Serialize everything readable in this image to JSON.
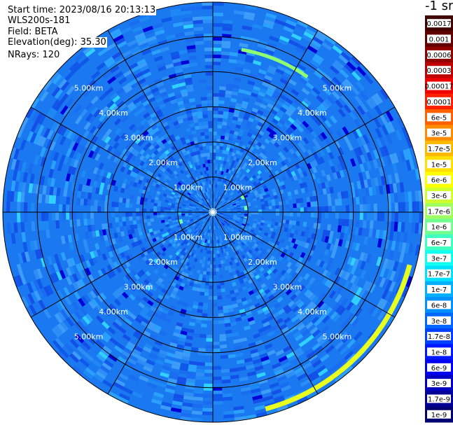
{
  "header": {
    "start_time": "Start time: 2023/08/16 20:13:13",
    "instrument": "WLS200s-181",
    "field": "Field: BETA",
    "elevation_label": "Elevation(deg):",
    "elevation_value": "35.30",
    "nrays": "NRays: 120"
  },
  "chart_data": {
    "type": "heatmap",
    "projection": "polar (PPI scan)",
    "range_rings_km": [
      1,
      2,
      3,
      4,
      5
    ],
    "ring_labels": [
      "1.00km",
      "2.00km",
      "3.00km",
      "4.00km",
      "5.00km"
    ],
    "max_range_km": 5.98,
    "spoke_angles_deg": [
      0,
      30,
      60,
      90,
      120,
      150,
      180,
      210,
      240,
      270,
      300,
      330
    ],
    "nrays": 120,
    "colorbar": {
      "unit": "-1 sr",
      "labels": [
        "0.0017",
        "0.001",
        "0.0006",
        "0.0003",
        "0.00017",
        "0.0001",
        "6e-5",
        "3e-5",
        "1.7e-5",
        "1e-5",
        "6e-6",
        "3e-6",
        "1.7e-6",
        "1e-6",
        "6e-7",
        "3e-7",
        "1.7e-7",
        "1e-7",
        "6e-8",
        "3e-8",
        "1.7e-8",
        "1e-8",
        "6e-9",
        "3e-9",
        "1.7e-9",
        "1e-9"
      ],
      "colors": [
        "#400000",
        "#600000",
        "#900000",
        "#c00000",
        "#ee0000",
        "#ff2000",
        "#ff6000",
        "#ff8c00",
        "#ffb800",
        "#ffe000",
        "#ffff00",
        "#d0ff30",
        "#a0ff60",
        "#70ff90",
        "#40ffc0",
        "#10ffee",
        "#00e0ff",
        "#00b0ff",
        "#0090ff",
        "#0068ff",
        "#0040ff",
        "#0018ff",
        "#0000f0",
        "#0000c0",
        "#000098",
        "#000070"
      ]
    },
    "dominant_value_range": [
      "1e-8",
      "3e-8"
    ],
    "highlights": [
      {
        "range_km": 4.7,
        "azimuth_deg": [
          10,
          35
        ],
        "value": "1e-6"
      },
      {
        "range_km": 5.8,
        "azimuth_deg": [
          105,
          165
        ],
        "value": "3e-6"
      },
      {
        "range_km": 0.95,
        "azimuth_deg": [
          60,
          100
        ],
        "value": "1e-7"
      },
      {
        "range_km": 0.95,
        "azimuth_deg": [
          250,
          270
        ],
        "value": "1e-7"
      }
    ]
  }
}
